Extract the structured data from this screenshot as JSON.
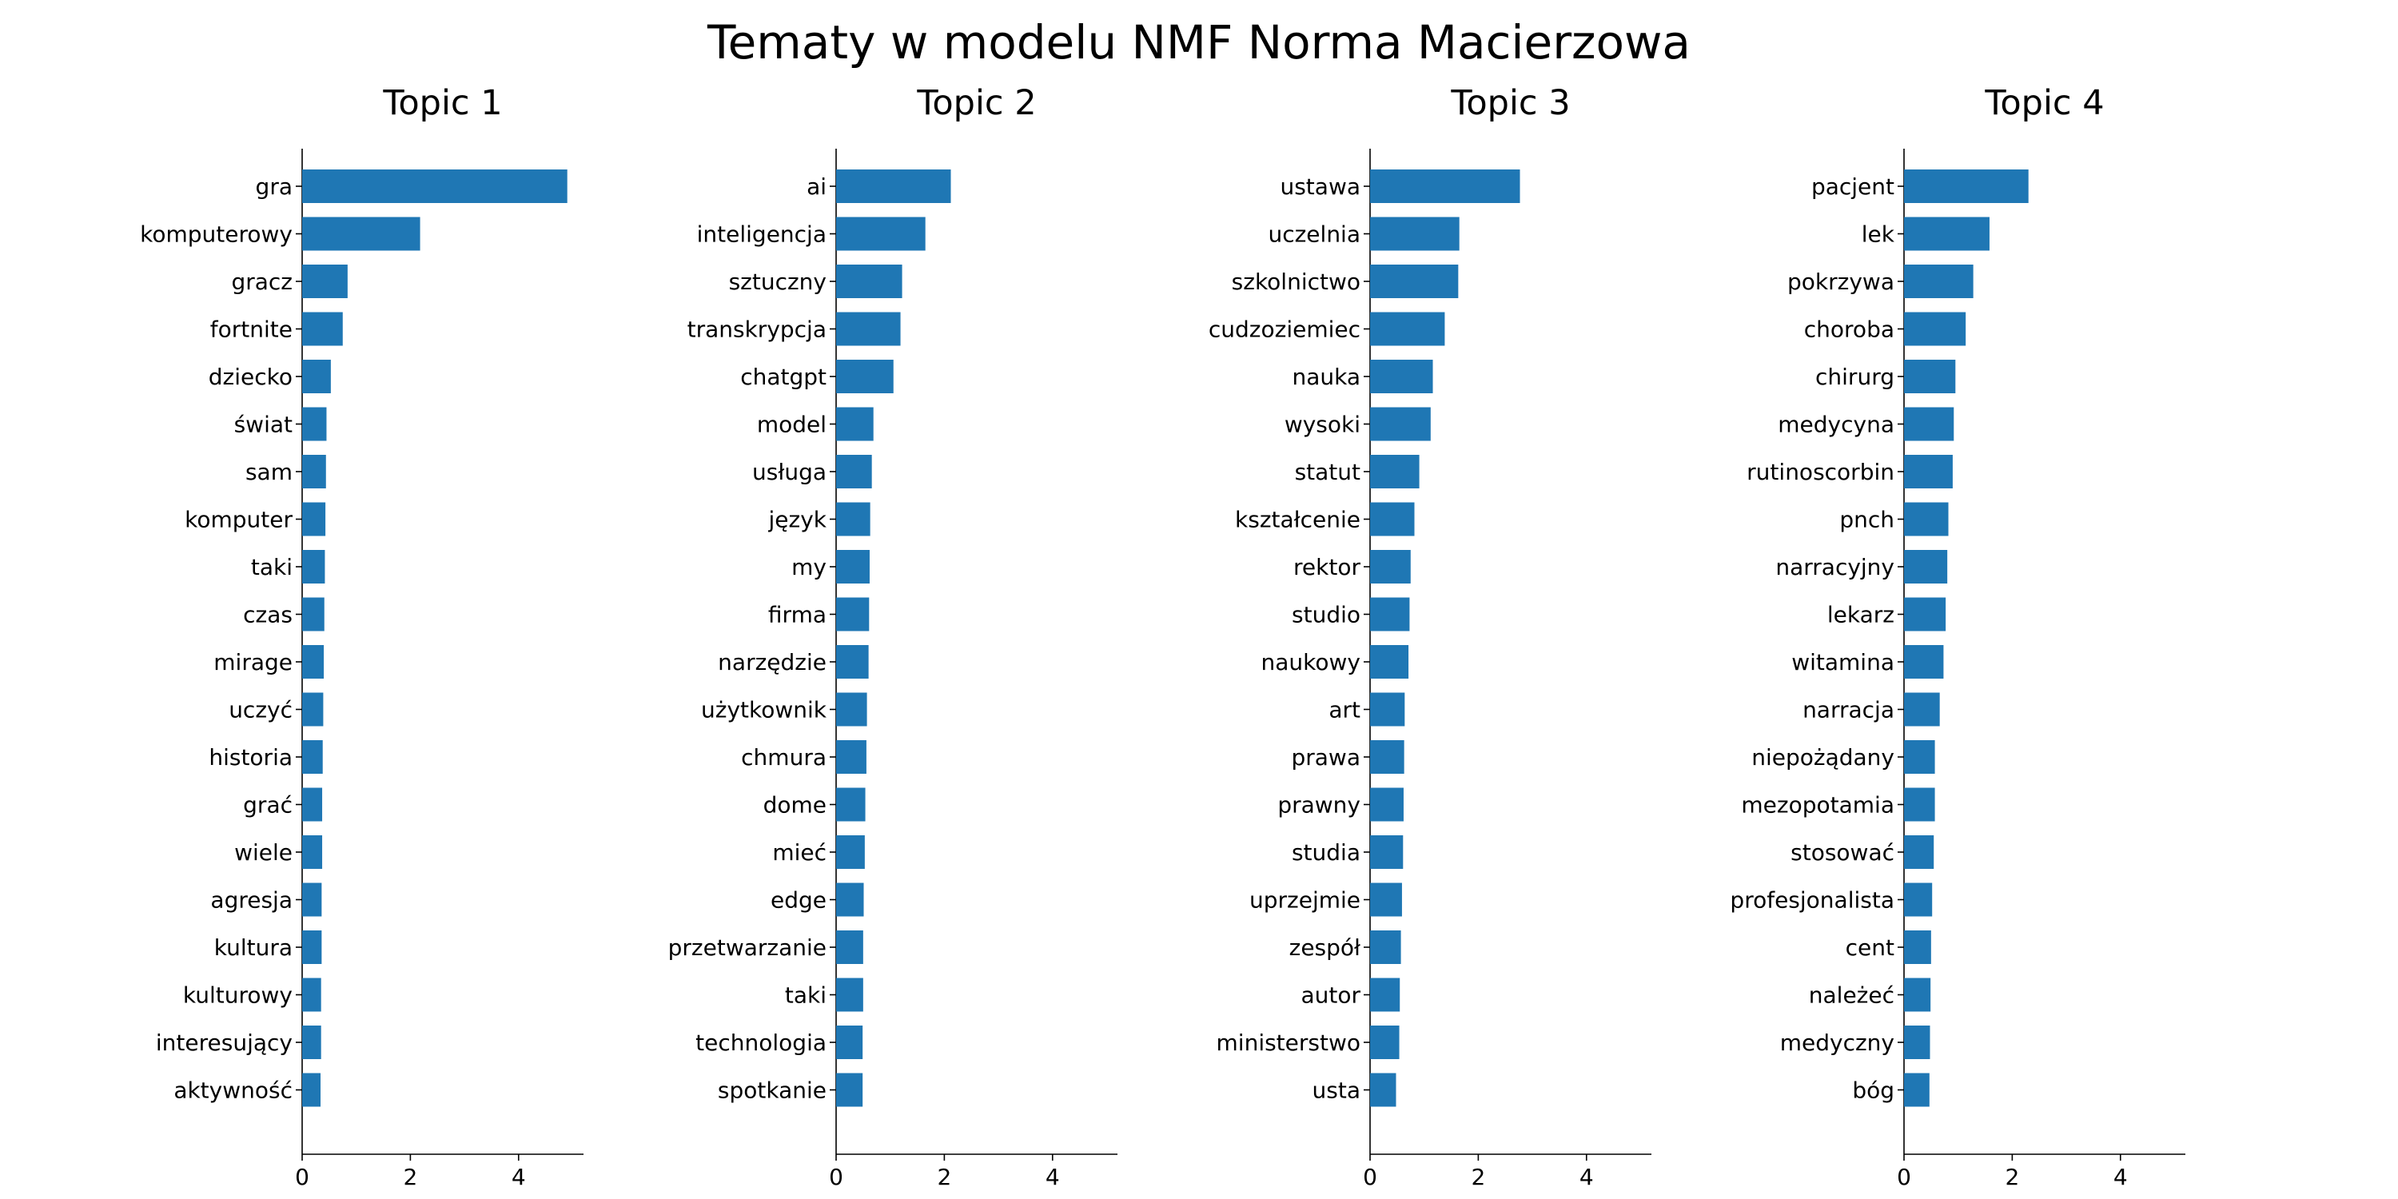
{
  "title": "Tematy w modelu NMF Norma Macierzowa",
  "colors": {
    "bar": "#1f77b4",
    "axis": "#000000",
    "text": "#000000"
  },
  "chart_data": [
    {
      "type": "bar",
      "orientation": "horizontal",
      "title": "Topic 1",
      "categories": [
        "gra",
        "komputerowy",
        "gracz",
        "fortnite",
        "dziecko",
        "świat",
        "sam",
        "komputer",
        "taki",
        "czas",
        "mirage",
        "uczyć",
        "historia",
        "grać",
        "wiele",
        "agresja",
        "kultura",
        "kulturowy",
        "interesujący",
        "aktywność"
      ],
      "values": [
        4.9,
        2.18,
        0.84,
        0.75,
        0.53,
        0.45,
        0.44,
        0.43,
        0.42,
        0.41,
        0.4,
        0.39,
        0.38,
        0.37,
        0.37,
        0.36,
        0.36,
        0.35,
        0.35,
        0.34
      ],
      "xlim": [
        0,
        5.2
      ],
      "xticks": [
        "0",
        "2",
        "4"
      ],
      "xtick_values": [
        0,
        2,
        4
      ]
    },
    {
      "type": "bar",
      "orientation": "horizontal",
      "title": "Topic 2",
      "categories": [
        "ai",
        "inteligencja",
        "sztuczny",
        "transkrypcja",
        "chatgpt",
        "model",
        "usługa",
        "język",
        "my",
        "firma",
        "narzędzie",
        "użytkownik",
        "chmura",
        "dome",
        "mieć",
        "edge",
        "przetwarzanie",
        "taki",
        "technologia",
        "spotkanie"
      ],
      "values": [
        2.12,
        1.65,
        1.22,
        1.19,
        1.06,
        0.69,
        0.66,
        0.63,
        0.62,
        0.61,
        0.6,
        0.57,
        0.56,
        0.54,
        0.53,
        0.51,
        0.5,
        0.5,
        0.49,
        0.49
      ],
      "xlim": [
        0,
        5.2
      ],
      "xticks": [
        "0",
        "2",
        "4"
      ],
      "xtick_values": [
        0,
        2,
        4
      ]
    },
    {
      "type": "bar",
      "orientation": "horizontal",
      "title": "Topic 3",
      "categories": [
        "ustawa",
        "uczelnia",
        "szkolnictwo",
        "cudzoziemiec",
        "nauka",
        "wysoki",
        "statut",
        "kształcenie",
        "rektor",
        "studio",
        "naukowy",
        "art",
        "prawa",
        "prawny",
        "studia",
        "uprzejmie",
        "zespół",
        "autor",
        "ministerstwo",
        "usta"
      ],
      "values": [
        2.77,
        1.65,
        1.63,
        1.38,
        1.16,
        1.12,
        0.91,
        0.82,
        0.75,
        0.73,
        0.71,
        0.64,
        0.63,
        0.62,
        0.61,
        0.59,
        0.57,
        0.55,
        0.54,
        0.48
      ],
      "xlim": [
        0,
        5.2
      ],
      "xticks": [
        "0",
        "2",
        "4"
      ],
      "xtick_values": [
        0,
        2,
        4
      ]
    },
    {
      "type": "bar",
      "orientation": "horizontal",
      "title": "Topic 4",
      "categories": [
        "pacjent",
        "lek",
        "pokrzywa",
        "choroba",
        "chirurg",
        "medycyna",
        "rutinoscorbin",
        "pnch",
        "narracyjny",
        "lekarz",
        "witamina",
        "narracja",
        "niepożądany",
        "mezopotamia",
        "stosować",
        "profesjonalista",
        "cent",
        "należeć",
        "medyczny",
        "bóg"
      ],
      "values": [
        2.3,
        1.58,
        1.28,
        1.14,
        0.95,
        0.92,
        0.9,
        0.82,
        0.8,
        0.77,
        0.73,
        0.66,
        0.57,
        0.57,
        0.55,
        0.52,
        0.5,
        0.49,
        0.48,
        0.47
      ],
      "xlim": [
        0,
        5.2
      ],
      "xticks": [
        "0",
        "2",
        "4"
      ],
      "xtick_values": [
        0,
        2,
        4
      ]
    }
  ]
}
